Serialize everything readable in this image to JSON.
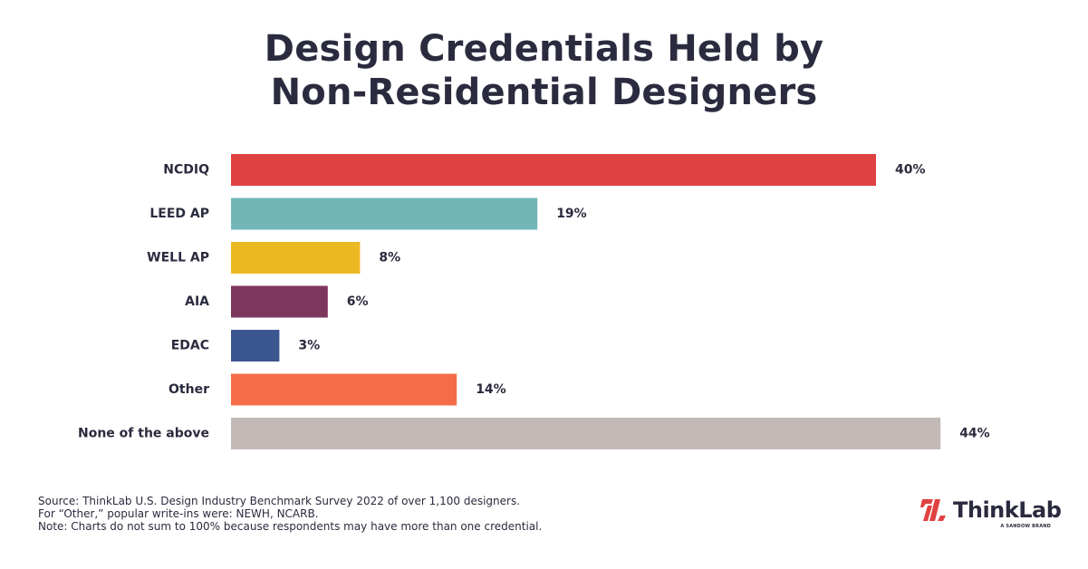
{
  "chart_data": {
    "type": "bar",
    "orientation": "horizontal",
    "title": "Design Credentials Held by Non-Residential Designers",
    "title_lines": [
      "Design Credentials Held by",
      "Non-Residential Designers"
    ],
    "categories": [
      "NCDIQ",
      "LEED AP",
      "WELL AP",
      "AIA",
      "EDAC",
      "Other",
      "None of the above"
    ],
    "values": [
      40,
      19,
      8,
      6,
      3,
      14,
      44
    ],
    "value_labels": [
      "40%",
      "19%",
      "8%",
      "6%",
      "3%",
      "14%",
      "44%"
    ],
    "colors": [
      "#e04141",
      "#74b5b8",
      "#edb923",
      "#7e375c",
      "#3c5690",
      "#f46d48",
      "#c3b9b6"
    ],
    "value_unit": "%",
    "xlim": [
      0,
      44
    ],
    "grid": false,
    "legend": "none"
  },
  "footnotes": [
    "Source: ThinkLab U.S. Design Industry Benchmark Survey 2022 of over 1,100 designers.",
    "For “Other,” popular write-ins were: NEWH, NCARB.",
    "Note: Charts do not sum to 100% because respondents may have more than one credential."
  ],
  "brand": {
    "name": "ThinkLab",
    "trademark": "™",
    "tagline": "A SANDOW BRAND",
    "mark_icon": "thinklab-logo-icon",
    "accent": "#e04141"
  }
}
